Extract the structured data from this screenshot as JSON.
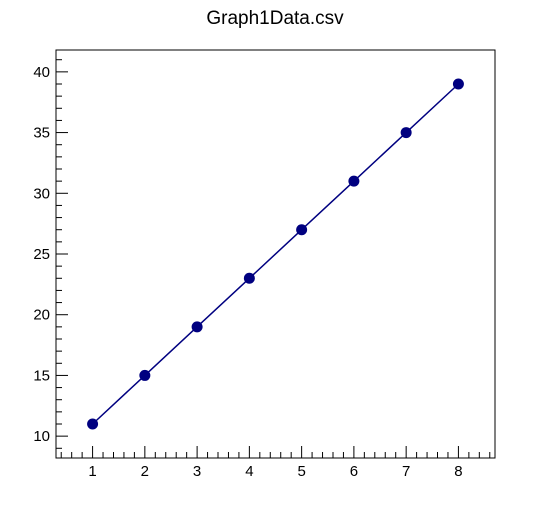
{
  "chart_data": {
    "type": "line",
    "title": "Graph1Data.csv",
    "xlabel": "",
    "ylabel": "",
    "xlim": [
      0.3,
      8.7
    ],
    "ylim": [
      8.2,
      41.8
    ],
    "x_ticks": [
      1,
      2,
      3,
      4,
      5,
      6,
      7,
      8
    ],
    "y_ticks": [
      10,
      15,
      20,
      25,
      30,
      35,
      40
    ],
    "grid": false,
    "series": [
      {
        "x": [
          1,
          2,
          3,
          4,
          5,
          6,
          7,
          8
        ],
        "y": [
          11,
          15,
          19,
          23,
          27,
          31,
          35,
          39
        ],
        "color": "#000080",
        "marker": "circle"
      }
    ]
  }
}
